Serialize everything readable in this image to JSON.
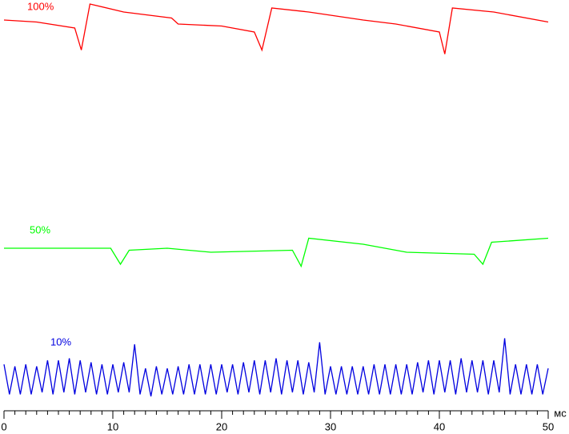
{
  "chart_data": {
    "type": "line",
    "xlabel": "мс",
    "xlim": [
      0,
      50
    ],
    "xticks": [
      0,
      10,
      20,
      30,
      40,
      50
    ],
    "xminorticks": [
      1,
      2,
      3,
      4,
      5,
      6,
      7,
      8,
      9,
      11,
      12,
      13,
      14,
      15,
      16,
      17,
      18,
      19,
      21,
      22,
      23,
      24,
      25,
      26,
      27,
      28,
      29,
      31,
      32,
      33,
      34,
      35,
      36,
      37,
      38,
      39,
      41,
      42,
      43,
      44,
      45,
      46,
      47,
      48,
      49
    ],
    "ylim": [
      0,
      102
    ],
    "series": [
      {
        "name": "100%",
        "color": "#ff0000",
        "x": [
          0,
          3,
          6.5,
          7.1,
          7.9,
          11,
          15.4,
          16,
          20,
          23,
          23.7,
          24.6,
          28,
          33,
          36,
          40,
          40.5,
          41.2,
          45,
          50
        ],
        "values": [
          97,
          96.5,
          95,
          89.5,
          101,
          99,
          97.5,
          96,
          95.5,
          94,
          89.5,
          100,
          99,
          97,
          96,
          94,
          88.5,
          100,
          99,
          96.5
        ]
      },
      {
        "name": "50%",
        "color": "#00ff00",
        "x": [
          0,
          5,
          9.8,
          10.7,
          11.5,
          15,
          19,
          26.5,
          27.3,
          28,
          33,
          37,
          43.2,
          44,
          44.8,
          50
        ],
        "values": [
          40,
          40,
          40,
          36,
          39.5,
          40,
          39,
          39.5,
          35.5,
          42.5,
          41,
          39,
          38.5,
          36,
          41.5,
          42.5
        ]
      },
      {
        "name": "10%",
        "color": "#0000e0",
        "x": [
          0,
          0.5,
          1,
          1.5,
          2,
          2.5,
          3,
          3.5,
          4,
          4.5,
          5,
          5.5,
          6,
          6.5,
          7,
          7.5,
          8,
          8.5,
          9,
          9.5,
          10,
          10.5,
          11,
          11.5,
          12,
          12.5,
          13,
          13.5,
          14,
          14.5,
          15,
          15.5,
          16,
          16.5,
          17,
          17.5,
          18,
          18.5,
          19,
          19.5,
          20,
          20.5,
          21,
          21.5,
          22,
          22.5,
          23,
          23.5,
          24,
          24.5,
          25,
          25.5,
          26,
          26.5,
          27,
          27.5,
          28,
          28.5,
          29,
          29.5,
          30,
          30.5,
          31,
          31.5,
          32,
          32.5,
          33,
          33.5,
          34,
          34.5,
          35,
          35.5,
          36,
          36.5,
          37,
          37.5,
          38,
          38.5,
          39,
          39.5,
          40,
          40.5,
          41,
          41.5,
          42,
          42.5,
          43,
          43.5,
          44,
          44.5,
          45,
          45.5,
          46,
          46.5,
          47,
          47.5,
          48,
          48.5,
          49,
          49.5,
          50
        ],
        "values": [
          11,
          3.5,
          10.5,
          3.5,
          11,
          3.5,
          10.5,
          4,
          12,
          3.5,
          12,
          4,
          12.5,
          3.5,
          12,
          4,
          11.5,
          3.5,
          11,
          3.5,
          11,
          4,
          11.5,
          4,
          16,
          3.5,
          10,
          3,
          10.5,
          3.5,
          10,
          3.5,
          10.5,
          3.5,
          11,
          3.5,
          11,
          3.5,
          11,
          3.5,
          11,
          4,
          11,
          3.5,
          11.5,
          4,
          12,
          3.5,
          12,
          4,
          12.5,
          3.5,
          12,
          4,
          12,
          3.5,
          11.5,
          4,
          16.5,
          3.5,
          10.5,
          3.5,
          10.5,
          3.5,
          10.5,
          3.5,
          10.5,
          3.5,
          11,
          3.5,
          11,
          3.5,
          11,
          3.5,
          11,
          3.5,
          11.5,
          4,
          12,
          3.5,
          12,
          4,
          12,
          3.5,
          12.5,
          4,
          12,
          4,
          12,
          3.5,
          12,
          4,
          17.5,
          3.5,
          11,
          3.5,
          11,
          3.5,
          11,
          3.5,
          10
        ]
      }
    ]
  }
}
